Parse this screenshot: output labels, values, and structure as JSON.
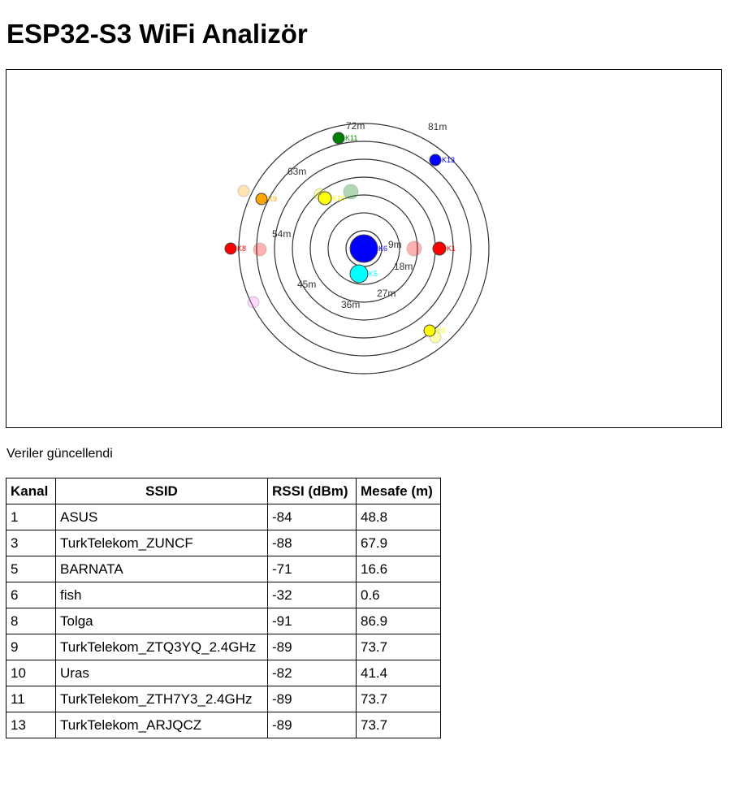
{
  "title": "ESP32-S3 WiFi Analizör",
  "status": "Veriler güncellendi",
  "radar": {
    "ring_labels": [
      "9m",
      "18m",
      "27m",
      "36m",
      "45m",
      "54m",
      "63m",
      "72m",
      "81m"
    ],
    "networks": [
      {
        "channel_label": "K1",
        "color": "#ff0000"
      },
      {
        "channel_label": "K3",
        "color": "#ffff00"
      },
      {
        "channel_label": "K5",
        "color": "#00ffff"
      },
      {
        "channel_label": "K6",
        "color": "#0000ff"
      },
      {
        "channel_label": "K8",
        "color": "#ff0000"
      },
      {
        "channel_label": "K9",
        "color": "#ffa500"
      },
      {
        "channel_label": "K10",
        "color": "#ffff00"
      },
      {
        "channel_label": "K11",
        "color": "#008000"
      },
      {
        "channel_label": "K13",
        "color": "#0000ff"
      }
    ],
    "faded_dots": [
      {
        "color": "#ffa500"
      },
      {
        "color": "#ffff00"
      },
      {
        "color": "#008000"
      },
      {
        "color": "#ff0000"
      },
      {
        "color": "#ff0000"
      },
      {
        "color": "#ee82ee"
      },
      {
        "color": "#ffff00"
      }
    ]
  },
  "table": {
    "headers": [
      "Kanal",
      "SSID",
      "RSSI (dBm)",
      "Mesafe (m)"
    ],
    "rows": [
      [
        "1",
        "ASUS",
        "-84",
        "48.8"
      ],
      [
        "3",
        "TurkTelekom_ZUNCF",
        "-88",
        "67.9"
      ],
      [
        "5",
        "BARNATA",
        "-71",
        "16.6"
      ],
      [
        "6",
        "fish",
        "-32",
        "0.6"
      ],
      [
        "8",
        "Tolga",
        "-91",
        "86.9"
      ],
      [
        "9",
        "TurkTelekom_ZTQ3YQ_2.4GHz",
        "-89",
        "73.7"
      ],
      [
        "10",
        "Uras",
        "-82",
        "41.4"
      ],
      [
        "11",
        "TurkTelekom_ZTH7Y3_2.4GHz",
        "-89",
        "73.7"
      ],
      [
        "13",
        "TurkTelekom_ARJQCZ",
        "-89",
        "73.7"
      ]
    ]
  }
}
